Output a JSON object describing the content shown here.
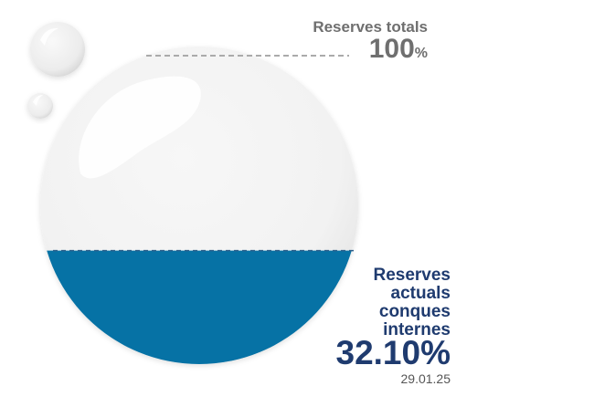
{
  "chart_data": {
    "type": "gauge",
    "total": {
      "label": "Reserves totals",
      "value": "100",
      "unit": "%"
    },
    "current": {
      "label_lines": [
        "Reserves",
        "actuals",
        "conques",
        "internes"
      ],
      "value_percent": 32.1,
      "value_text": "32.10%",
      "date": "29.01.25"
    },
    "fill_color": "#0672a5"
  }
}
